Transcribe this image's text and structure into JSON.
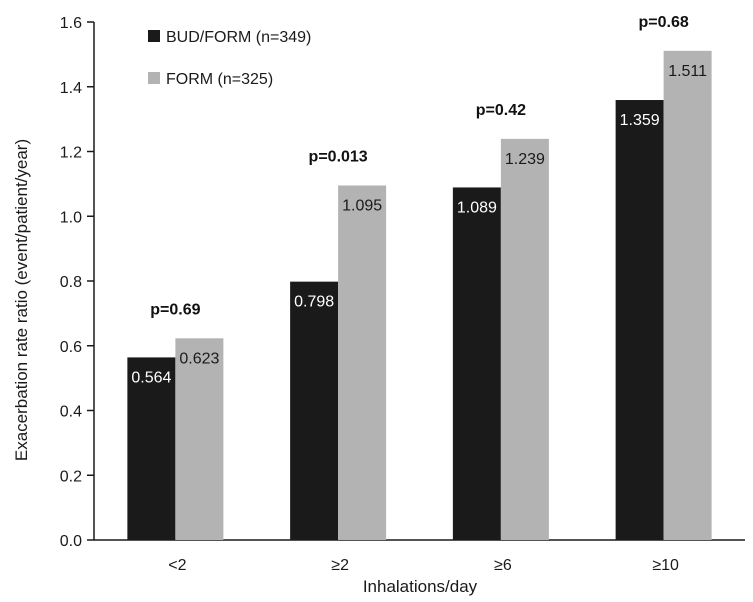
{
  "chart_data": {
    "type": "bar",
    "xlabel": "Inhalations/day",
    "ylabel": "Exacerbation rate ratio (event/patient/year)",
    "ylim": [
      0,
      1.6
    ],
    "yticks": [
      "0.0",
      "0.2",
      "0.4",
      "0.6",
      "0.8",
      "1.0",
      "1.2",
      "1.4",
      "1.6"
    ],
    "categories": [
      "<2",
      "≥2",
      "≥6",
      "≥10"
    ],
    "series": [
      {
        "name": "BUD/FORM (n=349)",
        "color": "#1a1a1a",
        "label_color": "#ffffff",
        "values": [
          0.564,
          0.798,
          1.089,
          1.359
        ],
        "labels": [
          "0.564",
          "0.798",
          "1.089",
          "1.359"
        ]
      },
      {
        "name": "FORM (n=325)",
        "color": "#b3b3b3",
        "label_color": "#1a1a1a",
        "values": [
          0.623,
          1.095,
          1.239,
          1.511
        ],
        "labels": [
          "0.623",
          "1.095",
          "1.239",
          "1.511"
        ]
      }
    ],
    "annotations": [
      "p=0.69",
      "p=0.013",
      "p=0.42",
      "p=0.68"
    ],
    "legend_position": "top-left",
    "grid": false
  }
}
